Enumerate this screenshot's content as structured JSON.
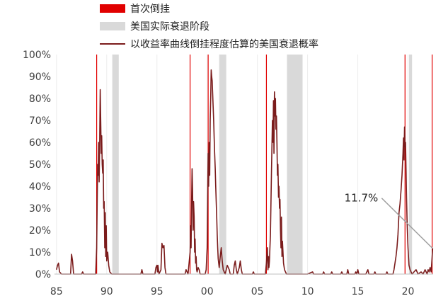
{
  "chart_data": {
    "type": "line",
    "legend": [
      {
        "label": "首次倒挂",
        "kind": "vline",
        "color": "#e10000"
      },
      {
        "label": "美国实际衰退阶段",
        "kind": "band",
        "color": "#d9d9d9"
      },
      {
        "label": "以收益率曲线倒挂程度估算的美国衰退概率",
        "kind": "line",
        "color": "#7b1c1c"
      }
    ],
    "legend_position": "top-center",
    "x_ticks": [
      "85",
      "90",
      "95",
      "00",
      "05",
      "10",
      "15",
      "20"
    ],
    "x_tick_years": [
      1985,
      1990,
      1995,
      2000,
      2005,
      2010,
      2015,
      2020
    ],
    "xlim": [
      1984.8,
      2022.5
    ],
    "y_ticks": [
      "0%",
      "10%",
      "20%",
      "30%",
      "40%",
      "50%",
      "60%",
      "70%",
      "80%",
      "90%",
      "100%"
    ],
    "ylim": [
      0,
      100
    ],
    "grid": "vertical",
    "first_inversions": [
      1989.0,
      1998.3,
      2000.1,
      2005.9,
      2019.7,
      2022.4
    ],
    "recessions": [
      [
        1990.55,
        1991.2
      ],
      [
        2001.2,
        2001.9
      ],
      [
        2007.95,
        2009.5
      ],
      [
        2020.1,
        2020.4
      ]
    ],
    "annotation": {
      "text": "11.7%",
      "year": 2022.45,
      "value": 11.7
    },
    "series": [
      {
        "color": "#7b1c1c",
        "points": [
          [
            1985.0,
            2
          ],
          [
            1985.1,
            4
          ],
          [
            1985.2,
            5
          ],
          [
            1985.3,
            1
          ],
          [
            1985.5,
            0
          ],
          [
            1986.0,
            0
          ],
          [
            1986.4,
            0
          ],
          [
            1986.5,
            9
          ],
          [
            1986.6,
            6
          ],
          [
            1986.7,
            0
          ],
          [
            1987.5,
            0
          ],
          [
            1987.6,
            1
          ],
          [
            1987.7,
            0
          ],
          [
            1988.9,
            0
          ],
          [
            1989.0,
            12
          ],
          [
            1989.05,
            32
          ],
          [
            1989.1,
            50
          ],
          [
            1989.15,
            45
          ],
          [
            1989.2,
            60
          ],
          [
            1989.25,
            42
          ],
          [
            1989.3,
            62
          ],
          [
            1989.35,
            84
          ],
          [
            1989.4,
            70
          ],
          [
            1989.45,
            55
          ],
          [
            1989.5,
            63
          ],
          [
            1989.55,
            50
          ],
          [
            1989.6,
            46
          ],
          [
            1989.65,
            52
          ],
          [
            1989.7,
            30
          ],
          [
            1989.75,
            33
          ],
          [
            1989.8,
            12
          ],
          [
            1989.85,
            28
          ],
          [
            1989.9,
            8
          ],
          [
            1989.95,
            22
          ],
          [
            1990.0,
            6
          ],
          [
            1990.1,
            10
          ],
          [
            1990.2,
            4
          ],
          [
            1990.3,
            1
          ],
          [
            1990.5,
            0
          ],
          [
            1991.5,
            0
          ],
          [
            1992.0,
            0
          ],
          [
            1993.0,
            0
          ],
          [
            1993.4,
            0
          ],
          [
            1993.5,
            2
          ],
          [
            1993.6,
            0
          ],
          [
            1994.8,
            0
          ],
          [
            1994.9,
            3
          ],
          [
            1995.0,
            4
          ],
          [
            1995.05,
            1
          ],
          [
            1995.1,
            4
          ],
          [
            1995.2,
            0
          ],
          [
            1995.4,
            2
          ],
          [
            1995.5,
            14
          ],
          [
            1995.6,
            12
          ],
          [
            1995.7,
            13
          ],
          [
            1995.8,
            3
          ],
          [
            1995.9,
            0
          ],
          [
            1997.8,
            0
          ],
          [
            1997.9,
            2
          ],
          [
            1998.0,
            1
          ],
          [
            1998.1,
            0
          ],
          [
            1998.3,
            10
          ],
          [
            1998.35,
            22
          ],
          [
            1998.4,
            12
          ],
          [
            1998.45,
            33
          ],
          [
            1998.5,
            48
          ],
          [
            1998.55,
            38
          ],
          [
            1998.6,
            20
          ],
          [
            1998.65,
            33
          ],
          [
            1998.7,
            26
          ],
          [
            1998.75,
            10
          ],
          [
            1998.8,
            16
          ],
          [
            1998.85,
            5
          ],
          [
            1998.9,
            8
          ],
          [
            1998.95,
            2
          ],
          [
            1999.0,
            1
          ],
          [
            1999.1,
            3
          ],
          [
            1999.2,
            2
          ],
          [
            1999.3,
            0
          ],
          [
            1999.8,
            0
          ],
          [
            1999.9,
            2
          ],
          [
            2000.0,
            12
          ],
          [
            2000.05,
            35
          ],
          [
            2000.1,
            55
          ],
          [
            2000.15,
            40
          ],
          [
            2000.2,
            60
          ],
          [
            2000.25,
            45
          ],
          [
            2000.3,
            70
          ],
          [
            2000.35,
            80
          ],
          [
            2000.4,
            93
          ],
          [
            2000.45,
            90
          ],
          [
            2000.5,
            88
          ],
          [
            2000.55,
            82
          ],
          [
            2000.6,
            76
          ],
          [
            2000.65,
            70
          ],
          [
            2000.7,
            62
          ],
          [
            2000.75,
            55
          ],
          [
            2000.8,
            48
          ],
          [
            2000.85,
            40
          ],
          [
            2000.9,
            33
          ],
          [
            2000.95,
            26
          ],
          [
            2001.0,
            18
          ],
          [
            2001.05,
            12
          ],
          [
            2001.1,
            7
          ],
          [
            2001.2,
            3
          ],
          [
            2001.3,
            8
          ],
          [
            2001.4,
            12
          ],
          [
            2001.5,
            6
          ],
          [
            2001.6,
            2
          ],
          [
            2001.8,
            0
          ],
          [
            2002.0,
            4
          ],
          [
            2002.2,
            2
          ],
          [
            2002.3,
            0
          ],
          [
            2002.6,
            0
          ],
          [
            2002.7,
            4
          ],
          [
            2002.8,
            6
          ],
          [
            2002.9,
            2
          ],
          [
            2003.0,
            0
          ],
          [
            2003.2,
            3
          ],
          [
            2003.3,
            6
          ],
          [
            2003.4,
            2
          ],
          [
            2003.5,
            0
          ],
          [
            2004.5,
            0
          ],
          [
            2004.6,
            1
          ],
          [
            2004.7,
            0
          ],
          [
            2005.8,
            0
          ],
          [
            2005.9,
            5
          ],
          [
            2006.0,
            12
          ],
          [
            2006.05,
            2
          ],
          [
            2006.1,
            8
          ],
          [
            2006.15,
            3
          ],
          [
            2006.2,
            6
          ],
          [
            2006.3,
            18
          ],
          [
            2006.4,
            45
          ],
          [
            2006.5,
            70
          ],
          [
            2006.55,
            60
          ],
          [
            2006.6,
            79
          ],
          [
            2006.65,
            55
          ],
          [
            2006.7,
            83
          ],
          [
            2006.75,
            72
          ],
          [
            2006.8,
            80
          ],
          [
            2006.85,
            66
          ],
          [
            2006.9,
            72
          ],
          [
            2006.95,
            60
          ],
          [
            2007.0,
            45
          ],
          [
            2007.05,
            50
          ],
          [
            2007.1,
            35
          ],
          [
            2007.15,
            40
          ],
          [
            2007.2,
            30
          ],
          [
            2007.25,
            34
          ],
          [
            2007.3,
            20
          ],
          [
            2007.35,
            12
          ],
          [
            2007.4,
            26
          ],
          [
            2007.45,
            8
          ],
          [
            2007.5,
            15
          ],
          [
            2007.6,
            5
          ],
          [
            2007.7,
            2
          ],
          [
            2007.9,
            0
          ],
          [
            2009.5,
            0
          ],
          [
            2010.0,
            0
          ],
          [
            2010.5,
            1
          ],
          [
            2010.6,
            0
          ],
          [
            2011.5,
            0
          ],
          [
            2011.6,
            1
          ],
          [
            2011.7,
            0
          ],
          [
            2012.3,
            0
          ],
          [
            2012.4,
            1
          ],
          [
            2012.5,
            0
          ],
          [
            2013.3,
            0
          ],
          [
            2013.4,
            1
          ],
          [
            2013.5,
            0
          ],
          [
            2013.9,
            0
          ],
          [
            2014.0,
            2
          ],
          [
            2014.1,
            0
          ],
          [
            2014.7,
            0
          ],
          [
            2014.8,
            1
          ],
          [
            2014.9,
            0
          ],
          [
            2015.0,
            2
          ],
          [
            2015.1,
            0
          ],
          [
            2015.8,
            0
          ],
          [
            2015.9,
            1
          ],
          [
            2016.0,
            2
          ],
          [
            2016.1,
            0
          ],
          [
            2016.6,
            0
          ],
          [
            2016.7,
            1
          ],
          [
            2016.8,
            0
          ],
          [
            2017.8,
            0
          ],
          [
            2017.9,
            1
          ],
          [
            2018.0,
            0
          ],
          [
            2018.5,
            0
          ],
          [
            2018.6,
            2
          ],
          [
            2018.7,
            5
          ],
          [
            2018.8,
            8
          ],
          [
            2018.9,
            12
          ],
          [
            2019.0,
            18
          ],
          [
            2019.1,
            28
          ],
          [
            2019.2,
            32
          ],
          [
            2019.3,
            38
          ],
          [
            2019.4,
            45
          ],
          [
            2019.5,
            55
          ],
          [
            2019.55,
            62
          ],
          [
            2019.6,
            52
          ],
          [
            2019.65,
            67
          ],
          [
            2019.7,
            58
          ],
          [
            2019.75,
            60
          ],
          [
            2019.8,
            48
          ],
          [
            2019.85,
            35
          ],
          [
            2019.9,
            25
          ],
          [
            2019.95,
            18
          ],
          [
            2020.0,
            12
          ],
          [
            2020.05,
            8
          ],
          [
            2020.1,
            4
          ],
          [
            2020.2,
            2
          ],
          [
            2020.4,
            0
          ],
          [
            2020.6,
            1
          ],
          [
            2020.8,
            2
          ],
          [
            2021.0,
            0
          ],
          [
            2021.3,
            1
          ],
          [
            2021.5,
            0
          ],
          [
            2021.7,
            2
          ],
          [
            2021.9,
            0
          ],
          [
            2022.0,
            2
          ],
          [
            2022.1,
            1
          ],
          [
            2022.2,
            3
          ],
          [
            2022.3,
            1
          ],
          [
            2022.4,
            8
          ],
          [
            2022.45,
            11.7
          ]
        ]
      }
    ]
  }
}
